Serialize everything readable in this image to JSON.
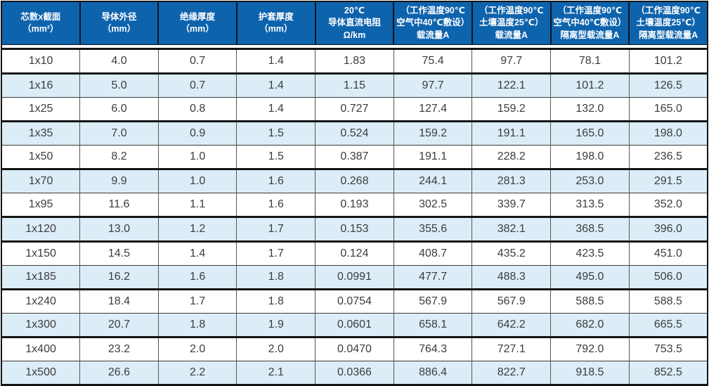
{
  "colors": {
    "header_bg": "#0e63ad",
    "header_text": "#ffffff",
    "row_alt_bg": "#dcedf8",
    "body_text": "#3c3c3c",
    "border_dark": "#141414"
  },
  "table": {
    "headers": [
      "芯数x截面\n（mm²）",
      "导体外径\n（mm）",
      "绝缘厚度\n（mm）",
      "护套厚度\n（mm）",
      "20℃\n导体直流电阻\nΩ/km",
      "（工作温度90℃\n空气中40℃敷设）\n载流量A",
      "（工作温度90℃\n土壤温度25℃）\n载流量A",
      "（工作温度90℃\n空气中40℃敷设）\n隔离型载流量A",
      "（工作温度90℃\n土壤温度25℃）\n隔离型载流量A"
    ],
    "rows": [
      [
        "1x10",
        "4.0",
        "0.7",
        "1.4",
        "1.83",
        "75.4",
        "97.7",
        "78.1",
        "101.2"
      ],
      [
        "1x16",
        "5.0",
        "0.7",
        "1.4",
        "1.15",
        "97.7",
        "122.1",
        "101.2",
        "126.5"
      ],
      [
        "1x25",
        "6.0",
        "0.8",
        "1.4",
        "0.727",
        "127.4",
        "159.2",
        "132.0",
        "165.0"
      ],
      [
        "1x35",
        "7.0",
        "0.9",
        "1.5",
        "0.524",
        "159.2",
        "191.1",
        "165.0",
        "198.0"
      ],
      [
        "1x50",
        "8.2",
        "1.0",
        "1.5",
        "0.387",
        "191.1",
        "228.2",
        "198.0",
        "236.5"
      ],
      [
        "1x70",
        "9.9",
        "1.0",
        "1.6",
        "0.268",
        "244.1",
        "281.3",
        "253.0",
        "291.5"
      ],
      [
        "1x95",
        "11.6",
        "1.1",
        "1.6",
        "0.193",
        "302.5",
        "339.7",
        "313.5",
        "352.0"
      ],
      [
        "1x120",
        "13.0",
        "1.2",
        "1.7",
        "0.153",
        "355.6",
        "382.1",
        "368.5",
        "396.0"
      ],
      [
        "1x150",
        "14.5",
        "1.4",
        "1.7",
        "0.124",
        "408.7",
        "435.2",
        "423.5",
        "451.0"
      ],
      [
        "1x185",
        "16.2",
        "1.6",
        "1.8",
        "0.0991",
        "477.7",
        "488.3",
        "495.0",
        "506.0"
      ],
      [
        "1x240",
        "18.4",
        "1.7",
        "1.8",
        "0.0754",
        "567.9",
        "567.9",
        "588.5",
        "588.5"
      ],
      [
        "1x300",
        "20.7",
        "1.8",
        "1.9",
        "0.0601",
        "658.1",
        "642.2",
        "682.0",
        "665.5"
      ],
      [
        "1x400",
        "23.2",
        "2.0",
        "2.0",
        "0.0470",
        "764.3",
        "727.1",
        "792.0",
        "753.5"
      ],
      [
        "1x500",
        "26.6",
        "2.2",
        "2.1",
        "0.0366",
        "886.4",
        "822.7",
        "918.5",
        "852.5"
      ]
    ]
  }
}
